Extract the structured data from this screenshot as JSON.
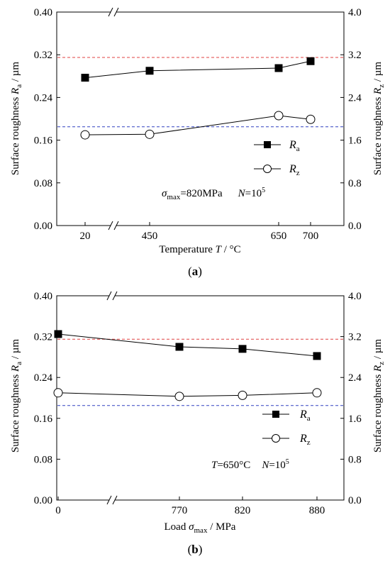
{
  "chart_data": [
    {
      "type": "line",
      "panel_label": "a",
      "x_categories": [
        "20",
        "450",
        "650",
        "700"
      ],
      "xlabel": "Temperature T / °C",
      "ylabel_left": "Surface roughness Ra / µm",
      "ylabel_right": "Surface roughness Rz / µm",
      "ylim_left": [
        0.0,
        0.4
      ],
      "ylim_right": [
        0.0,
        4.0
      ],
      "yticks_left": [
        "0.00",
        "0.08",
        "0.16",
        "0.24",
        "0.32",
        "0.40"
      ],
      "yticks_right": [
        "0.0",
        "0.8",
        "1.6",
        "2.4",
        "3.2",
        "4.0"
      ],
      "axis_break": "x",
      "series": [
        {
          "name": "Ra",
          "axis": "left",
          "marker": "filled-square",
          "values": [
            0.277,
            0.29,
            0.295,
            0.308
          ]
        },
        {
          "name": "Rz",
          "axis": "right",
          "marker": "open-circle",
          "values": [
            1.7,
            1.71,
            2.06,
            1.99
          ]
        }
      ],
      "reference_lines": [
        {
          "axis": "left",
          "value": 0.315,
          "color": "#e04040"
        },
        {
          "axis": "left",
          "value": 0.185,
          "color": "#3040c0"
        }
      ],
      "annotation": {
        "sigma": "σ",
        "sigma_sub": "max",
        "sigma_value": "=820MPa",
        "n_label": "N",
        "n_value": "=10",
        "n_exp": "5"
      },
      "legend_placement": "lower-right",
      "grid": false
    },
    {
      "type": "line",
      "panel_label": "b",
      "x_categories": [
        "0",
        "770",
        "820",
        "880"
      ],
      "xlabel": "Load σmax / MPa",
      "ylabel_left": "Surface roughness Ra / µm",
      "ylabel_right": "Surface roughness Rz / µm",
      "ylim_left": [
        0.0,
        0.4
      ],
      "ylim_right": [
        0.0,
        4.0
      ],
      "yticks_left": [
        "0.00",
        "0.08",
        "0.16",
        "0.24",
        "0.32",
        "0.40"
      ],
      "yticks_right": [
        "0.0",
        "0.8",
        "1.6",
        "2.4",
        "3.2",
        "4.0"
      ],
      "axis_break": "x",
      "series": [
        {
          "name": "Ra",
          "axis": "left",
          "marker": "filled-square",
          "values": [
            0.325,
            0.3,
            0.296,
            0.282
          ]
        },
        {
          "name": "Rz",
          "axis": "right",
          "marker": "open-circle",
          "values": [
            2.1,
            2.03,
            2.05,
            2.1
          ]
        }
      ],
      "reference_lines": [
        {
          "axis": "left",
          "value": 0.315,
          "color": "#e04040"
        },
        {
          "axis": "left",
          "value": 0.185,
          "color": "#3040c0"
        }
      ],
      "annotation": {
        "t_label": "T",
        "t_value": "=650°C",
        "n_label": "N",
        "n_value": "=10",
        "n_exp": "5"
      },
      "legend_placement": "lower-right",
      "grid": false
    }
  ],
  "labels": {
    "a": {
      "x_title_main": "Temperature ",
      "x_title_var": "T",
      "x_title_unit": " / °C",
      "y_left_main": "Surface roughness ",
      "y_left_var": "R",
      "y_left_sub": "a",
      "y_left_unit": " / µm",
      "y_right_main": "Surface roughness ",
      "y_right_var": "R",
      "y_right_sub": "z",
      "y_right_unit": " / µm",
      "legend_ra": "R",
      "legend_ra_sub": "a",
      "legend_rz": "R",
      "legend_rz_sub": "z",
      "panel_open": "(",
      "panel_letter": "a",
      "panel_close": ")"
    },
    "b": {
      "x_title_main": "Load ",
      "x_title_var": "σ",
      "x_title_sub": "max",
      "x_title_unit": " / MPa",
      "y_left_main": "Surface roughness ",
      "y_left_var": "R",
      "y_left_sub": "a",
      "y_left_unit": " / µm",
      "y_right_main": "Surface roughness ",
      "y_right_var": "R",
      "y_right_sub": "z",
      "y_right_unit": " / µm",
      "legend_ra": "R",
      "legend_ra_sub": "a",
      "legend_rz": "R",
      "legend_rz_sub": "z",
      "panel_open": "(",
      "panel_letter": "b",
      "panel_close": ")"
    }
  }
}
